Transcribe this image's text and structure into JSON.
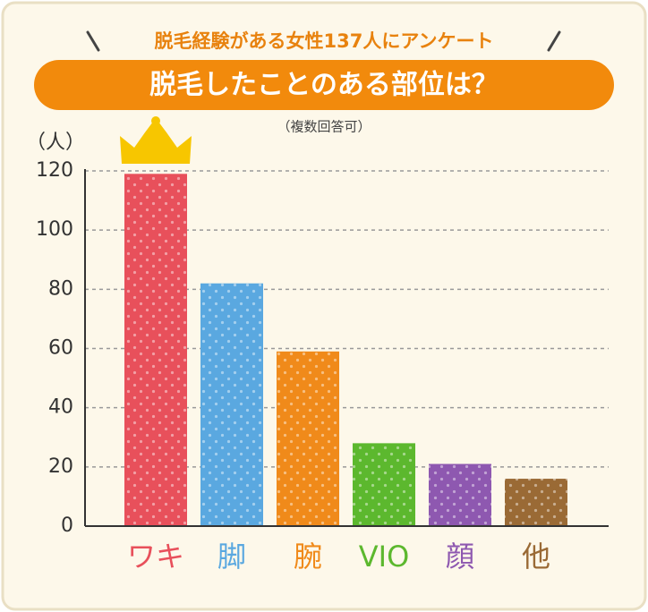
{
  "chart_data": {
    "type": "bar",
    "subtitle": "脱毛経験がある女性137人にアンケート",
    "title": "脱毛したことのある部位は？",
    "note": "（複数回答可）",
    "ylabel": "（人）",
    "categories": [
      "ワキ",
      "脚",
      "腕",
      "VIO",
      "顔",
      "他"
    ],
    "values": [
      119,
      82,
      59,
      28,
      21,
      16
    ],
    "colors": [
      "#e8505b",
      "#5aa8e0",
      "#f08a1a",
      "#5cb82e",
      "#8e58b0",
      "#9a6a35"
    ],
    "ylim": [
      0,
      120
    ],
    "yticks": [
      0,
      20,
      40,
      60,
      80,
      100,
      120
    ],
    "grid": true
  }
}
